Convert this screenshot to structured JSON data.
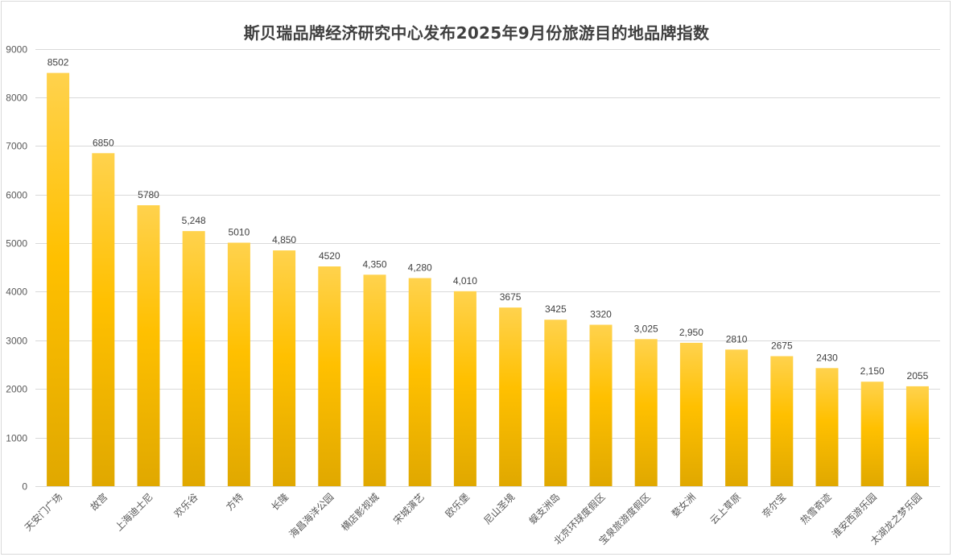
{
  "chart_data": {
    "type": "bar",
    "title": "斯贝瑞品牌经济研究中心发布2025年9月份旅游目的地品牌指数",
    "xlabel": "",
    "ylabel": "",
    "ylim": [
      0,
      9000
    ],
    "yticks": [
      "0",
      "1000",
      "2000",
      "3000",
      "4000",
      "5000",
      "6000",
      "7000",
      "8000",
      "9000"
    ],
    "grid": true,
    "legend": "none",
    "bar_color_top": "#ffd24d",
    "bar_color_mid": "#ffc000",
    "bar_color_bottom": "#e0a800",
    "categories": [
      "天安门广场",
      "故宫",
      "上海迪士尼",
      "欢乐谷",
      "方特",
      "长隆",
      "海昌海洋公园",
      "横店影视城",
      "宋城演艺",
      "欧乐堡",
      "尼山圣境",
      "蜈支洲岛",
      "北京环球度假区",
      "宝泉旅游度假区",
      "婺女洲",
      "云上草原",
      "奈尔宝",
      "热雪奇迹",
      "淮安西游乐园",
      "太湖龙之梦乐园"
    ],
    "values": [
      8502,
      6850,
      5780,
      5248,
      5010,
      4850,
      4520,
      4350,
      4280,
      4010,
      3675,
      3425,
      3320,
      3025,
      2950,
      2810,
      2675,
      2430,
      2150,
      2055
    ],
    "value_labels": [
      "8502",
      "6850",
      "5780",
      "5,248",
      "5010",
      "4,850",
      "4520",
      "4,350",
      "4,280",
      "4,010",
      "3675",
      "3425",
      "3320",
      "3,025",
      "2,950",
      "2810",
      "2675",
      "2430",
      "2,150",
      "2055"
    ]
  }
}
